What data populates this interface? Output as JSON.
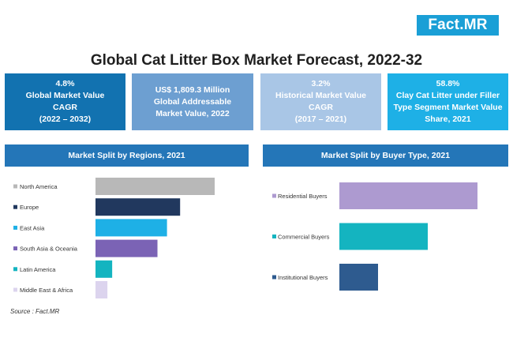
{
  "logo": "Fact.MR",
  "title": "Global Cat Litter Box Market Forecast, 2022-32",
  "kpis": [
    {
      "lines": [
        "4.8%",
        "Global Market Value",
        "CAGR",
        "(2022 – 2032)"
      ],
      "color": "#1272b0"
    },
    {
      "lines": [
        "US$ 1,809.3 Million",
        "Global Addressable",
        "Market Value, 2022"
      ],
      "color": "#6d9fd1"
    },
    {
      "lines": [
        "3.2%",
        "Historical Market Value",
        "CAGR",
        "(2017 – 2021)"
      ],
      "color": "#a9c6e6"
    },
    {
      "lines": [
        "58.8%",
        "Clay Cat Litter under Filler",
        "Type Segment Market Value",
        "Share, 2021"
      ],
      "color": "#1eb0e6"
    }
  ],
  "panels": {
    "regions_title": "Market Split by Regions, 2021",
    "buyer_title": "Market Split by Buyer Type, 2021"
  },
  "chart_data": [
    {
      "type": "bar",
      "orientation": "horizontal",
      "title": "Market Split by Regions, 2021",
      "categories": [
        "North America",
        "Europe",
        "East Asia",
        "South Asia & Oceania",
        "Latin America",
        "Middle East & Africa"
      ],
      "values": [
        100,
        71,
        60,
        52,
        14,
        10
      ],
      "colors": [
        "#b8b8b8",
        "#21385e",
        "#1eb0e6",
        "#7b63b5",
        "#14b4c0",
        "#dcd4ee"
      ],
      "value_scale": "relative (no axis printed)"
    },
    {
      "type": "bar",
      "orientation": "horizontal",
      "title": "Market Split by Buyer Type, 2021",
      "categories": [
        "Residential Buyers",
        "Commercial Buyers",
        "Institutional Buyers"
      ],
      "values": [
        100,
        64,
        28
      ],
      "colors": [
        "#ad9ad0",
        "#14b4c0",
        "#2e5b8f"
      ],
      "value_scale": "relative (no axis printed)"
    }
  ],
  "source": "Source : Fact.MR"
}
